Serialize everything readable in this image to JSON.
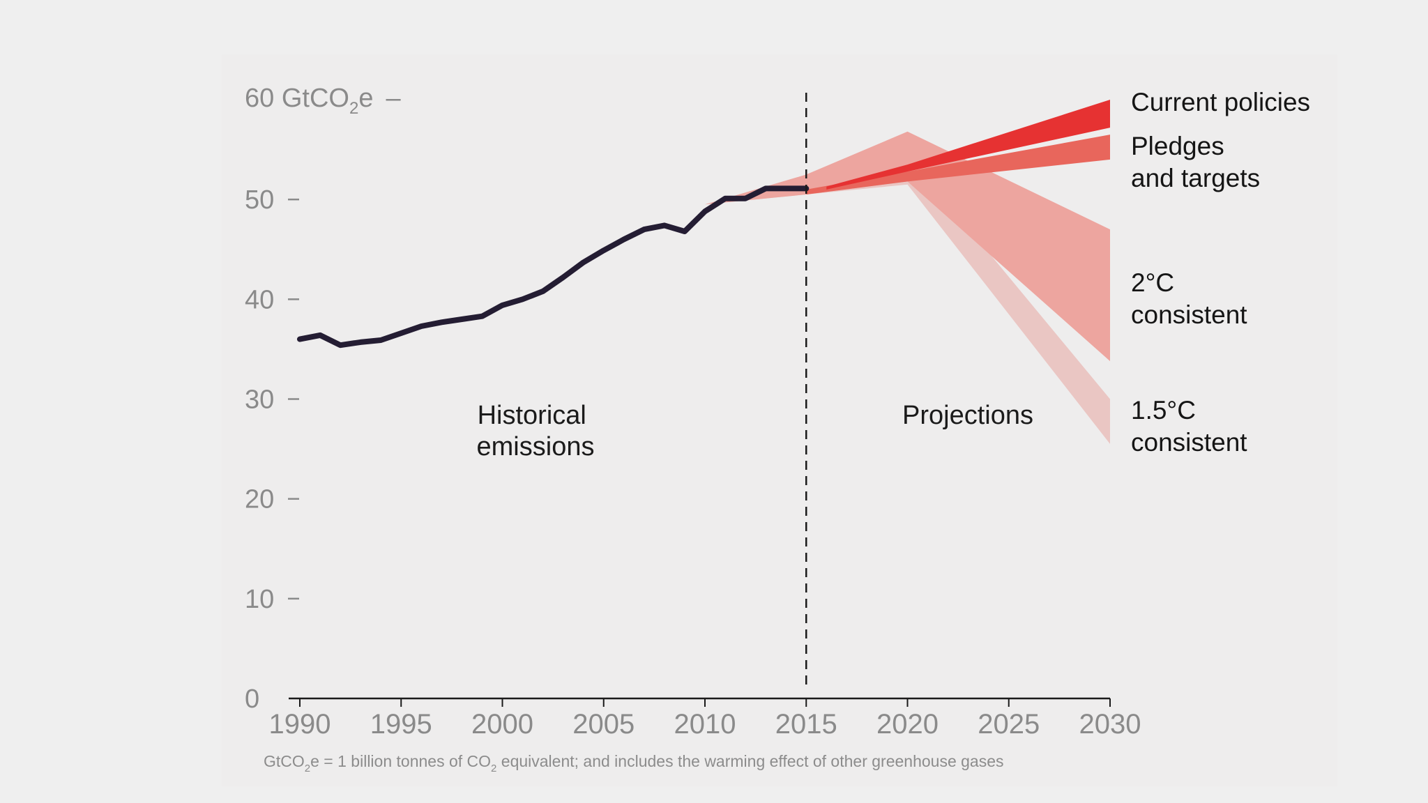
{
  "chart_data": {
    "type": "area",
    "title": "",
    "xlabel": "",
    "ylabel": "GtCO2e",
    "y_top_label": "60 GtCO",
    "y_top_label_sub": "2",
    "y_top_label_suffix": "e",
    "xlim": [
      1990,
      2030
    ],
    "ylim": [
      0,
      60
    ],
    "x_ticks": [
      1990,
      1995,
      2000,
      2005,
      2010,
      2015,
      2020,
      2025,
      2030
    ],
    "y_ticks": [
      0,
      10,
      20,
      30,
      40,
      50
    ],
    "divider_year": 2015,
    "historical": {
      "name": "Historical emissions",
      "x": [
        1990,
        1991,
        1992,
        1993,
        1994,
        1995,
        1996,
        1997,
        1998,
        1999,
        2000,
        2001,
        2002,
        2003,
        2004,
        2005,
        2006,
        2007,
        2008,
        2009,
        2010,
        2011,
        2012,
        2013,
        2014,
        2015
      ],
      "y": [
        36.0,
        36.4,
        35.4,
        35.7,
        35.9,
        36.6,
        37.3,
        37.7,
        38.0,
        38.3,
        39.4,
        40.0,
        40.8,
        42.2,
        43.7,
        44.9,
        46.0,
        47.0,
        47.4,
        46.8,
        48.8,
        50.1,
        50.1,
        51.1,
        51.1,
        51.1
      ]
    },
    "series": [
      {
        "name": "1.5°C consistent",
        "label_lines": [
          "1.5°C",
          "consistent"
        ],
        "color": "#eac6c3",
        "x": [
          2010,
          2015,
          2020,
          2030
        ],
        "upper": [
          49.5,
          51.5,
          54.5,
          30.0
        ],
        "lower": [
          49.5,
          50.5,
          51.5,
          25.5
        ]
      },
      {
        "name": "2°C consistent",
        "label_lines": [
          "2°C",
          "consistent"
        ],
        "color": "#eda59f",
        "x": [
          2010,
          2015,
          2020,
          2030
        ],
        "upper": [
          49.5,
          52.5,
          56.8,
          47.0
        ],
        "lower": [
          49.5,
          50.5,
          51.8,
          33.8
        ]
      },
      {
        "name": "Pledges and targets",
        "label_lines": [
          "Pledges",
          "and targets"
        ],
        "color": "#e8665c",
        "x": [
          2015,
          2020,
          2030
        ],
        "upper": [
          51.0,
          52.8,
          56.5
        ],
        "lower": [
          50.5,
          51.8,
          54.0
        ]
      },
      {
        "name": "Current policies",
        "label_lines": [
          "Current policies"
        ],
        "color": "#e63232",
        "x": [
          2016,
          2020,
          2030
        ],
        "upper": [
          51.3,
          53.5,
          60.0
        ],
        "lower": [
          51.0,
          52.8,
          57.2
        ]
      }
    ],
    "annotations": {
      "historical": [
        "Historical",
        "emissions"
      ],
      "projections": "Projections"
    },
    "footnote": {
      "a": "GtCO",
      "a_sub": "2",
      "b": "e = 1 billion tonnes of CO",
      "b_sub": "2",
      "c": " equivalent; and includes the warming effect of other greenhouse gases"
    },
    "colors": {
      "historical_line": "#241d33",
      "axis": "#1a1a1a",
      "divider": "#1a1a1a"
    }
  }
}
